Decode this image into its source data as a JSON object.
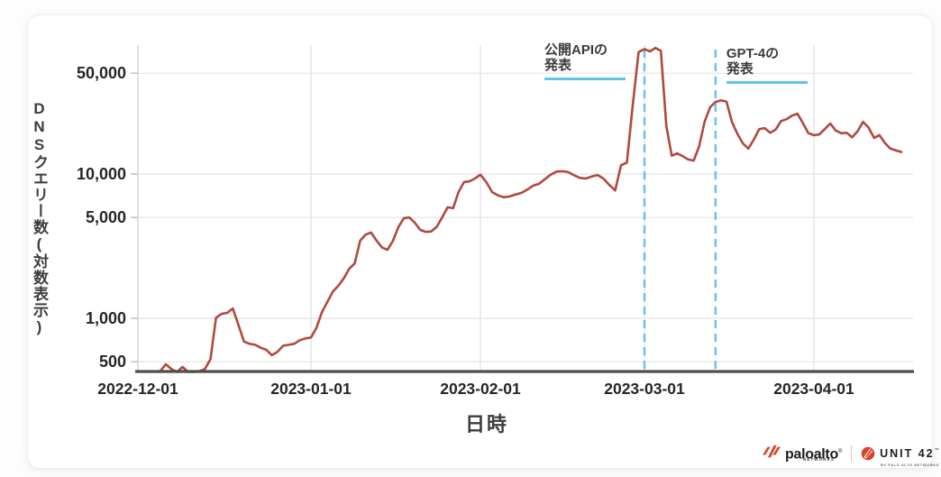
{
  "chart_data": {
    "type": "line",
    "title": "",
    "y_label": "DNSクエリー数(対数表示)",
    "x_label": "日時",
    "y_scale": "log",
    "grid": true,
    "legend": false,
    "ylim": [
      420,
      80000
    ],
    "y_ticks": [
      {
        "value": 50000,
        "label": "50,000"
      },
      {
        "value": 10000,
        "label": "10,000"
      },
      {
        "value": 5000,
        "label": "5,000"
      },
      {
        "value": 1000,
        "label": "1,000"
      },
      {
        "value": 500,
        "label": "500"
      }
    ],
    "x_ticks": [
      {
        "date": "2022-12-01",
        "label": "2022-12-01"
      },
      {
        "date": "2023-01-01",
        "label": "2023-01-01"
      },
      {
        "date": "2023-02-01",
        "label": "2023-02-01"
      },
      {
        "date": "2023-03-01",
        "label": "2023-03-01"
      },
      {
        "date": "2023-04-01",
        "label": "2023-04-01"
      }
    ],
    "annotations": [
      {
        "label": "公開APIの発表",
        "lines": [
          "公開APIの",
          "発表"
        ],
        "date": "2023-03-01"
      },
      {
        "label": "GPT-4の発表",
        "lines": [
          "GPT-4の",
          "発表"
        ],
        "date": "2023-03-14"
      }
    ],
    "colors": {
      "line": "#b04a3e",
      "annotation_blue": "#5fc3ea",
      "grid": "#e4e4e4",
      "axis": "#4d4d4d",
      "tick_text": "#262626"
    },
    "series": [
      {
        "name": "DNSクエリー数",
        "color": "#b04a3e",
        "points": [
          [
            "2022-12-05",
            430
          ],
          [
            "2022-12-06",
            480
          ],
          [
            "2022-12-07",
            445
          ],
          [
            "2022-12-08",
            425
          ],
          [
            "2022-12-09",
            460
          ],
          [
            "2022-12-10",
            425
          ],
          [
            "2022-12-11",
            425
          ],
          [
            "2022-12-12",
            430
          ],
          [
            "2022-12-13",
            445
          ],
          [
            "2022-12-14",
            520
          ],
          [
            "2022-12-15",
            1010
          ],
          [
            "2022-12-16",
            1075
          ],
          [
            "2022-12-17",
            1090
          ],
          [
            "2022-12-18",
            1170
          ],
          [
            "2022-12-19",
            900
          ],
          [
            "2022-12-20",
            690
          ],
          [
            "2022-12-21",
            665
          ],
          [
            "2022-12-22",
            655
          ],
          [
            "2022-12-23",
            625
          ],
          [
            "2022-12-24",
            605
          ],
          [
            "2022-12-25",
            555
          ],
          [
            "2022-12-26",
            585
          ],
          [
            "2022-12-27",
            645
          ],
          [
            "2022-12-28",
            655
          ],
          [
            "2022-12-29",
            665
          ],
          [
            "2022-12-30",
            705
          ],
          [
            "2022-12-31",
            725
          ],
          [
            "2023-01-01",
            735
          ],
          [
            "2023-01-02",
            860
          ],
          [
            "2023-01-03",
            1100
          ],
          [
            "2023-01-04",
            1300
          ],
          [
            "2023-01-05",
            1530
          ],
          [
            "2023-01-06",
            1680
          ],
          [
            "2023-01-07",
            1890
          ],
          [
            "2023-01-08",
            2210
          ],
          [
            "2023-01-09",
            2400
          ],
          [
            "2023-01-10",
            3450
          ],
          [
            "2023-01-11",
            3800
          ],
          [
            "2023-01-12",
            3930
          ],
          [
            "2023-01-13",
            3450
          ],
          [
            "2023-01-14",
            3100
          ],
          [
            "2023-01-15",
            2980
          ],
          [
            "2023-01-16",
            3450
          ],
          [
            "2023-01-17",
            4290
          ],
          [
            "2023-01-18",
            4950
          ],
          [
            "2023-01-19",
            5000
          ],
          [
            "2023-01-20",
            4600
          ],
          [
            "2023-01-21",
            4100
          ],
          [
            "2023-01-22",
            3970
          ],
          [
            "2023-01-23",
            4000
          ],
          [
            "2023-01-24",
            4300
          ],
          [
            "2023-01-25",
            5000
          ],
          [
            "2023-01-26",
            5880
          ],
          [
            "2023-01-27",
            5800
          ],
          [
            "2023-01-28",
            7500
          ],
          [
            "2023-01-29",
            8800
          ],
          [
            "2023-01-30",
            8900
          ],
          [
            "2023-01-31",
            9300
          ],
          [
            "2023-02-01",
            9900
          ],
          [
            "2023-02-02",
            8800
          ],
          [
            "2023-02-03",
            7500
          ],
          [
            "2023-02-04",
            7100
          ],
          [
            "2023-02-05",
            6900
          ],
          [
            "2023-02-06",
            7000
          ],
          [
            "2023-02-07",
            7200
          ],
          [
            "2023-02-08",
            7400
          ],
          [
            "2023-02-09",
            7800
          ],
          [
            "2023-02-10",
            8300
          ],
          [
            "2023-02-11",
            8550
          ],
          [
            "2023-02-12",
            9200
          ],
          [
            "2023-02-13",
            9900
          ],
          [
            "2023-02-14",
            10400
          ],
          [
            "2023-02-15",
            10450
          ],
          [
            "2023-02-16",
            10300
          ],
          [
            "2023-02-17",
            9800
          ],
          [
            "2023-02-18",
            9400
          ],
          [
            "2023-02-19",
            9300
          ],
          [
            "2023-02-20",
            9600
          ],
          [
            "2023-02-21",
            9850
          ],
          [
            "2023-02-22",
            9300
          ],
          [
            "2023-02-23",
            8400
          ],
          [
            "2023-02-24",
            7700
          ],
          [
            "2023-02-25",
            11500
          ],
          [
            "2023-02-26",
            12000
          ],
          [
            "2023-02-27",
            30000
          ],
          [
            "2023-02-28",
            70000
          ],
          [
            "2023-03-01",
            73500
          ],
          [
            "2023-03-02",
            70800
          ],
          [
            "2023-03-03",
            74800
          ],
          [
            "2023-03-04",
            71500
          ],
          [
            "2023-03-05",
            21400
          ],
          [
            "2023-03-06",
            13400
          ],
          [
            "2023-03-07",
            13900
          ],
          [
            "2023-03-08",
            13300
          ],
          [
            "2023-03-09",
            12600
          ],
          [
            "2023-03-10",
            12400
          ],
          [
            "2023-03-11",
            15500
          ],
          [
            "2023-03-12",
            23000
          ],
          [
            "2023-03-13",
            29000
          ],
          [
            "2023-03-14",
            31600
          ],
          [
            "2023-03-15",
            32400
          ],
          [
            "2023-03-16",
            31800
          ],
          [
            "2023-03-17",
            23000
          ],
          [
            "2023-03-18",
            19000
          ],
          [
            "2023-03-19",
            16300
          ],
          [
            "2023-03-20",
            15000
          ],
          [
            "2023-03-21",
            17300
          ],
          [
            "2023-03-22",
            20500
          ],
          [
            "2023-03-23",
            20800
          ],
          [
            "2023-03-24",
            19300
          ],
          [
            "2023-03-25",
            20300
          ],
          [
            "2023-03-26",
            23300
          ],
          [
            "2023-03-27",
            24000
          ],
          [
            "2023-03-28",
            25400
          ],
          [
            "2023-03-29",
            26200
          ],
          [
            "2023-03-30",
            22500
          ],
          [
            "2023-03-31",
            19200
          ],
          [
            "2023-04-01",
            18600
          ],
          [
            "2023-04-02",
            18800
          ],
          [
            "2023-04-03",
            20500
          ],
          [
            "2023-04-04",
            22400
          ],
          [
            "2023-04-05",
            20000
          ],
          [
            "2023-04-06",
            19200
          ],
          [
            "2023-04-07",
            19300
          ],
          [
            "2023-04-08",
            18000
          ],
          [
            "2023-04-09",
            19800
          ],
          [
            "2023-04-10",
            23000
          ],
          [
            "2023-04-11",
            21000
          ],
          [
            "2023-04-12",
            17800
          ],
          [
            "2023-04-13",
            18600
          ],
          [
            "2023-04-14",
            16400
          ],
          [
            "2023-04-15",
            15000
          ],
          [
            "2023-04-16",
            14600
          ],
          [
            "2023-04-17",
            14200
          ]
        ]
      }
    ]
  },
  "branding": {
    "paloalto": {
      "name": "paloalto",
      "reg": "®",
      "sub": "NETWORKS"
    },
    "unit42": {
      "name": "UNIT 42",
      "tm": "™",
      "sub": "BY PALO ALTO NETWORKS"
    }
  }
}
